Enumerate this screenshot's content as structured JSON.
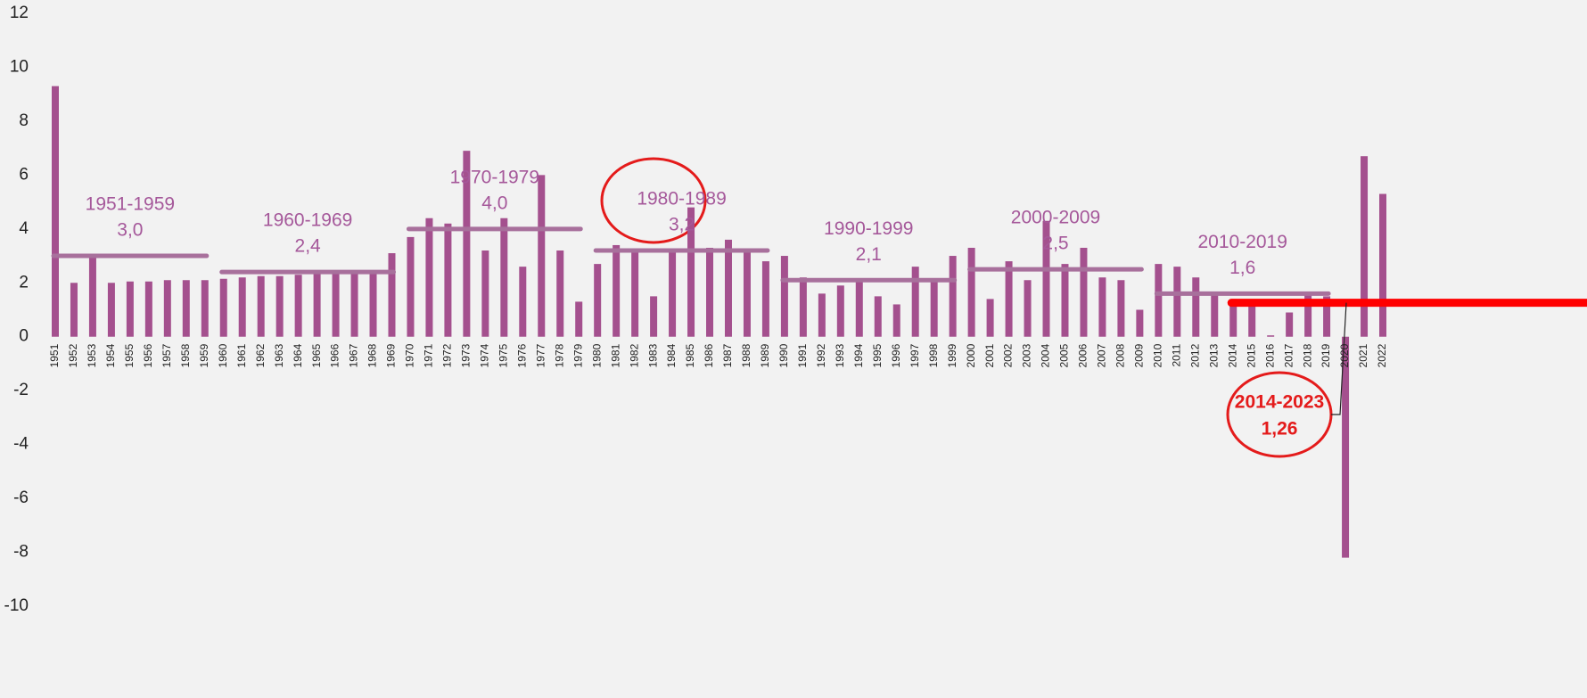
{
  "chart_data": {
    "type": "bar",
    "categories": [
      "1951",
      "1952",
      "1953",
      "1954",
      "1955",
      "1956",
      "1957",
      "1958",
      "1959",
      "1960",
      "1961",
      "1962",
      "1963",
      "1964",
      "1965",
      "1966",
      "1967",
      "1968",
      "1969",
      "1970",
      "1971",
      "1972",
      "1973",
      "1974",
      "1975",
      "1976",
      "1977",
      "1978",
      "1979",
      "1980",
      "1981",
      "1982",
      "1983",
      "1984",
      "1985",
      "1986",
      "1987",
      "1988",
      "1989",
      "1990",
      "1991",
      "1992",
      "1993",
      "1994",
      "1995",
      "1996",
      "1997",
      "1998",
      "1999",
      "2000",
      "2001",
      "2002",
      "2003",
      "2004",
      "2005",
      "2006",
      "2007",
      "2008",
      "2009",
      "2010",
      "2011",
      "2012",
      "2013",
      "2014",
      "2015",
      "2016",
      "2017",
      "2018",
      "2019",
      "2020",
      "2021",
      "2022"
    ],
    "values": [
      9.3,
      2.0,
      3.0,
      2.0,
      2.05,
      2.05,
      2.1,
      2.1,
      2.1,
      2.15,
      2.2,
      2.25,
      2.25,
      2.3,
      2.35,
      2.35,
      2.35,
      2.4,
      3.1,
      3.7,
      4.4,
      4.2,
      6.9,
      3.2,
      4.4,
      2.6,
      6.0,
      3.2,
      1.3,
      2.7,
      3.4,
      3.2,
      1.5,
      3.2,
      4.8,
      3.3,
      3.6,
      3.2,
      2.8,
      3.0,
      2.2,
      1.6,
      1.9,
      2.1,
      1.5,
      1.2,
      2.6,
      2.1,
      3.0,
      3.3,
      1.4,
      2.8,
      2.1,
      4.3,
      2.7,
      3.3,
      2.2,
      2.1,
      1.0,
      2.7,
      2.6,
      2.2,
      1.6,
      1.4,
      1.2,
      0.05,
      0.9,
      1.6,
      1.5,
      -8.2,
      6.7,
      5.3
    ],
    "color": "#a4508e",
    "ylim": [
      -10,
      12
    ],
    "yticks": [
      -10,
      -8,
      -6,
      -4,
      -2,
      0,
      2,
      4,
      6,
      8,
      10,
      12
    ],
    "decade_averages": [
      {
        "label": "1951-1959",
        "value": 3.0,
        "value_label": "3,0",
        "color": "#a8709c"
      },
      {
        "label": "1960-1969",
        "value": 2.4,
        "value_label": "2,4",
        "color": "#a8709c"
      },
      {
        "label": "1970-1979",
        "value": 4.0,
        "value_label": "4,0",
        "color": "#a8709c"
      },
      {
        "label": "1980-1989",
        "value": 3.2,
        "value_label": "3,2",
        "color": "#a8709c"
      },
      {
        "label": "1990-1999",
        "value": 2.1,
        "value_label": "2,1",
        "color": "#a8709c"
      },
      {
        "label": "2000-2009",
        "value": 2.5,
        "value_label": "2,5",
        "color": "#a8709c"
      },
      {
        "label": "2010-2019",
        "value": 1.6,
        "value_label": "1,6",
        "color": "#a8709c"
      },
      {
        "label": "2014-2023",
        "value": 1.26,
        "value_label": "1,26",
        "color": "#ff0000"
      }
    ]
  }
}
